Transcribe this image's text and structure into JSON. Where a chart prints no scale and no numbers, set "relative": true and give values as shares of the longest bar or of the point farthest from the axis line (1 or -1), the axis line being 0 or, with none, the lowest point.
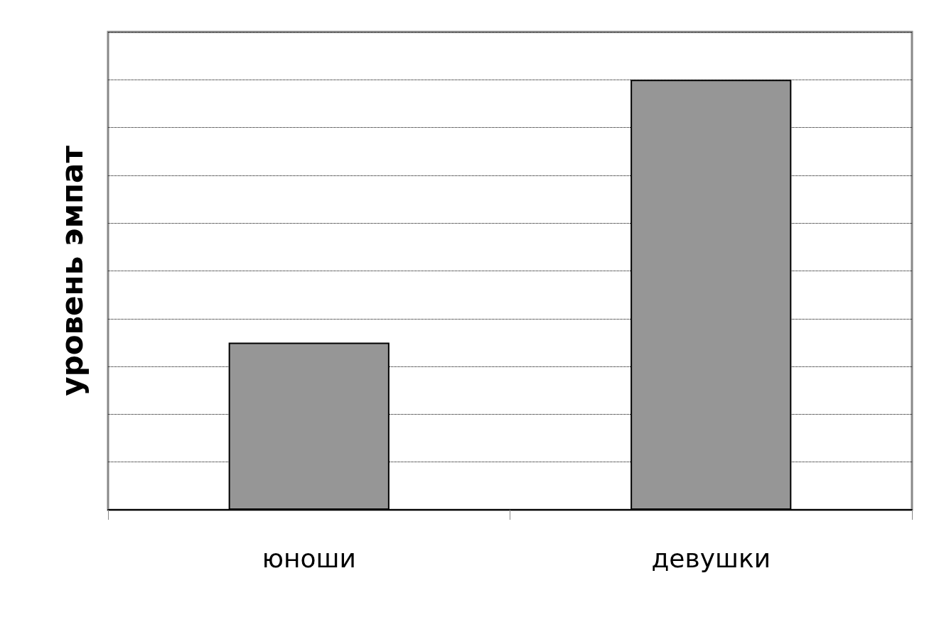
{
  "chart_data": {
    "type": "bar",
    "ylabel": "уровень эмпат",
    "categories": [
      "юноши",
      "девушки"
    ],
    "values": [
      0.389,
      1
    ],
    "color": "#969696",
    "relative": true,
    "grid": "y"
  }
}
